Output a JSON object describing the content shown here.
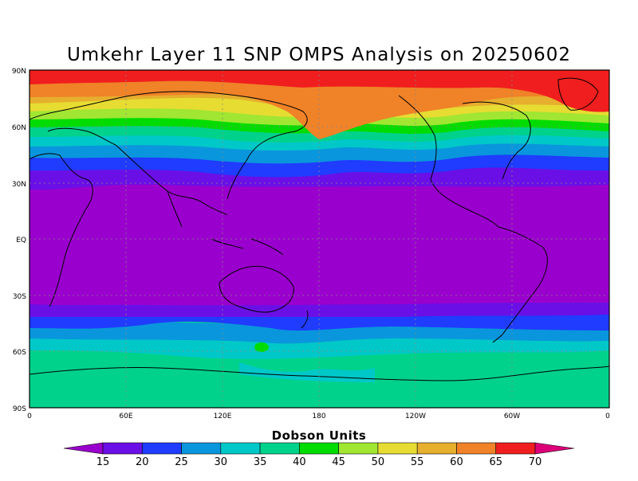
{
  "title": "Umkehr Layer 11 SNP OMPS Analysis on 20250602",
  "lat_labels": [
    "90N",
    "60N",
    "30N",
    "EQ",
    "30S",
    "60S",
    "90S"
  ],
  "lon_labels": [
    "0",
    "60E",
    "120E",
    "180",
    "120W",
    "60W",
    "0"
  ],
  "colorbar": {
    "title": "Dobson Units",
    "ticks": [
      "15",
      "20",
      "25",
      "30",
      "35",
      "40",
      "45",
      "50",
      "55",
      "60",
      "65",
      "70"
    ],
    "colors": [
      "#9a00cd",
      "#6a10e6",
      "#1f3cff",
      "#0a96dc",
      "#00c8c8",
      "#00d28c",
      "#00dc00",
      "#a0e632",
      "#e6dc32",
      "#e6af2d",
      "#f08228",
      "#f01e1e",
      "#dc0078"
    ]
  }
}
